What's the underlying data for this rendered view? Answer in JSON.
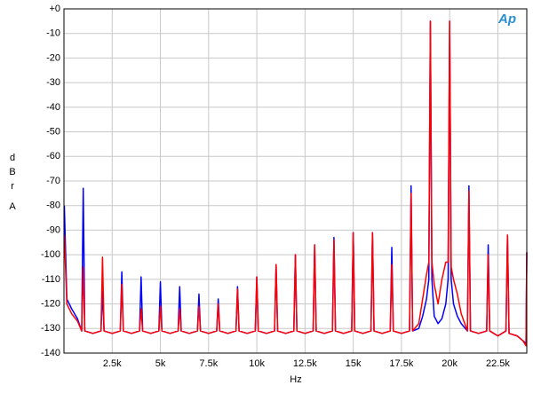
{
  "chart_data": {
    "type": "line",
    "xlabel": "Hz",
    "ylabel": "dBr",
    "ylabel_unit": "A",
    "logo": "Ap",
    "xlim": [
      0,
      24000
    ],
    "ylim": [
      -140,
      0
    ],
    "xticks": [
      {
        "value": 2500,
        "label": "2.5k"
      },
      {
        "value": 5000,
        "label": "5k"
      },
      {
        "value": 7500,
        "label": "7.5k"
      },
      {
        "value": 10000,
        "label": "10k"
      },
      {
        "value": 12500,
        "label": "12.5k"
      },
      {
        "value": 15000,
        "label": "15k"
      },
      {
        "value": 17500,
        "label": "17.5k"
      },
      {
        "value": 20000,
        "label": "20k"
      },
      {
        "value": 22500,
        "label": "22.5k"
      }
    ],
    "yticks": [
      {
        "value": 0,
        "label": "+0"
      },
      -10,
      -20,
      -30,
      -40,
      -50,
      -60,
      -70,
      -80,
      -90,
      -100,
      -110,
      -120,
      -130,
      -140
    ],
    "grid": true,
    "x": [
      20,
      150,
      400,
      700,
      920,
      1000,
      1080,
      1500,
      1920,
      2000,
      2080,
      2500,
      2920,
      3000,
      3080,
      3500,
      3920,
      4000,
      4080,
      4500,
      4920,
      5000,
      5080,
      5500,
      5920,
      6000,
      6080,
      6500,
      6920,
      7000,
      7080,
      7500,
      7920,
      8000,
      8080,
      8500,
      8920,
      9000,
      9080,
      9500,
      9920,
      10000,
      10080,
      10500,
      10920,
      11000,
      11080,
      11500,
      11920,
      12000,
      12080,
      12500,
      12920,
      13000,
      13080,
      13500,
      13920,
      14000,
      14080,
      14500,
      14920,
      15000,
      15080,
      15500,
      15920,
      16000,
      16080,
      16500,
      16920,
      17000,
      17080,
      17500,
      17920,
      18000,
      18080,
      18400,
      18600,
      18800,
      18920,
      19000,
      19080,
      19200,
      19400,
      19600,
      19800,
      19920,
      20000,
      20080,
      20200,
      20400,
      20600,
      20920,
      21000,
      21080,
      21500,
      21920,
      22000,
      22080,
      22500,
      22920,
      23000,
      23080,
      23500,
      23800,
      23960,
      24000
    ],
    "series": [
      {
        "color": "#0000ff",
        "values": [
          -80,
          -118,
          -122,
          -126,
          -131,
          -73,
          -131,
          -132,
          -131,
          -115,
          -131,
          -132,
          -131,
          -107,
          -131,
          -132,
          -131,
          -109,
          -131,
          -132,
          -131,
          -111,
          -131,
          -132,
          -131,
          -113,
          -131,
          -132,
          -131,
          -116,
          -131,
          -132,
          -131,
          -118,
          -131,
          -132,
          -131,
          -113,
          -131,
          -132,
          -131,
          -109,
          -131,
          -132,
          -131,
          -104,
          -131,
          -132,
          -131,
          -100,
          -131,
          -132,
          -131,
          -96,
          -131,
          -132,
          -131,
          -93,
          -131,
          -132,
          -131,
          -91,
          -131,
          -132,
          -131,
          -91,
          -131,
          -132,
          -131,
          -97,
          -131,
          -132,
          -131,
          -72,
          -131,
          -130,
          -125,
          -118,
          -110,
          -5,
          -110,
          -125,
          -128,
          -126,
          -120,
          -110,
          -5,
          -110,
          -120,
          -125,
          -128,
          -131,
          -72,
          -131,
          -132,
          -131,
          -96,
          -131,
          -133,
          -131,
          -92,
          -132,
          -133,
          -135,
          -136,
          -99
        ]
      },
      {
        "color": "#ff0000",
        "values": [
          -92,
          -120,
          -124,
          -127,
          -131,
          -105,
          -131,
          -132,
          -131,
          -101,
          -131,
          -132,
          -131,
          -112,
          -131,
          -132,
          -131,
          -122,
          -131,
          -132,
          -131,
          -121,
          -131,
          -132,
          -131,
          -122,
          -131,
          -132,
          -131,
          -121,
          -131,
          -132,
          -131,
          -120,
          -131,
          -132,
          -131,
          -114,
          -131,
          -132,
          -131,
          -109,
          -131,
          -132,
          -131,
          -104,
          -131,
          -132,
          -131,
          -100,
          -131,
          -132,
          -131,
          -96,
          -131,
          -132,
          -131,
          -94,
          -131,
          -132,
          -131,
          -91,
          -131,
          -132,
          -131,
          -91,
          -131,
          -132,
          -131,
          -104,
          -131,
          -132,
          -131,
          -75,
          -131,
          -128,
          -118,
          -108,
          -103,
          -5,
          -103,
          -112,
          -120,
          -110,
          -103,
          -103,
          -5,
          -105,
          -110,
          -116,
          -124,
          -131,
          -74,
          -131,
          -132,
          -131,
          -100,
          -131,
          -133,
          -131,
          -92,
          -132,
          -133,
          -135,
          -137,
          -99
        ]
      }
    ]
  }
}
